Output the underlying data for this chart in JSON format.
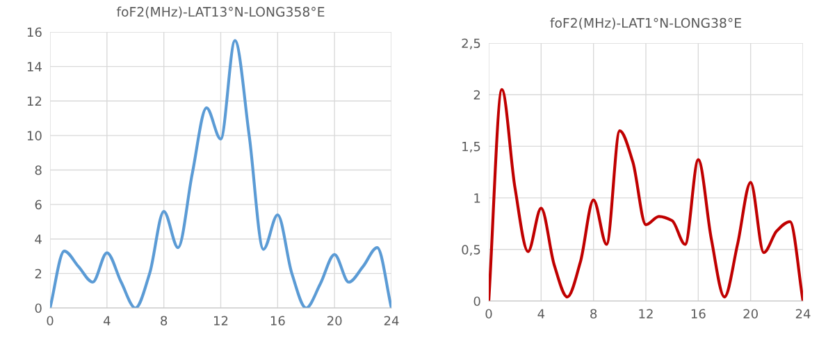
{
  "chart_data": [
    {
      "type": "line",
      "title": "foF2(MHz)-LAT13°N-LONG358°E",
      "x": [
        0,
        1,
        2,
        3,
        4,
        5,
        6,
        7,
        8,
        9,
        10,
        11,
        12,
        13,
        14,
        15,
        16,
        17,
        18,
        19,
        20,
        21,
        22,
        23,
        24
      ],
      "series": [
        {
          "color": "#5b9bd5",
          "values": [
            0,
            3.3,
            2.4,
            1.5,
            3.2,
            1.5,
            0,
            2,
            5.6,
            3.5,
            7.8,
            11.6,
            9.8,
            15.5,
            10,
            3.4,
            5.4,
            2,
            0,
            1.4,
            3.1,
            1.5,
            2.4,
            3.5,
            0
          ]
        }
      ],
      "xlim": [
        0,
        24
      ],
      "xticks": [
        0,
        4,
        8,
        12,
        16,
        20,
        24
      ],
      "ylim": [
        0,
        16
      ],
      "yticks": [
        0,
        2,
        4,
        6,
        8,
        10,
        12,
        14,
        16
      ],
      "grid": true,
      "marker": "none",
      "line_style": "solid"
    },
    {
      "type": "line",
      "title": "foF2(MHz)-LAT1°N-LONG38°E",
      "x": [
        0,
        1,
        2,
        3,
        4,
        5,
        6,
        7,
        8,
        9,
        10,
        11,
        12,
        13,
        14,
        15,
        16,
        17,
        18,
        19,
        20,
        21,
        22,
        23,
        24
      ],
      "series": [
        {
          "color": "#c00000",
          "values": [
            0,
            2.05,
            1.1,
            0.48,
            0.9,
            0.35,
            0.04,
            0.38,
            0.98,
            0.55,
            1.65,
            1.35,
            0.74,
            0.82,
            0.78,
            0.55,
            1.37,
            0.6,
            0.04,
            0.55,
            1.15,
            0.47,
            0.68,
            0.77,
            0
          ]
        }
      ],
      "xlim": [
        0,
        24
      ],
      "xticks": [
        0,
        4,
        8,
        12,
        16,
        20,
        24
      ],
      "ylim": [
        0,
        2.5
      ],
      "yticks": [
        0,
        {
          "value": 0.5,
          "label": "0,5"
        },
        1,
        {
          "value": 1.5,
          "label": "1,5"
        },
        2,
        {
          "value": 2.5,
          "label": "2,5"
        }
      ],
      "grid": true,
      "marker": "none",
      "line_style": "solid"
    }
  ]
}
